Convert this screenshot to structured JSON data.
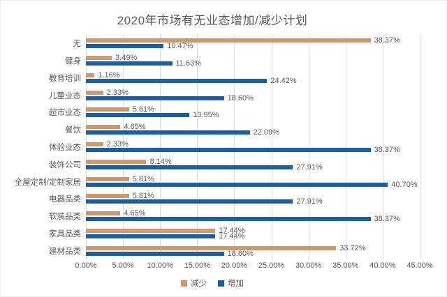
{
  "title": "2020年市场有无业态增加/减少计划",
  "colors": {
    "decrease": "#CA9A6E",
    "increase": "#1A5FA5",
    "gridline": "#DCDCDC",
    "text": "#595959"
  },
  "chart_data": {
    "type": "bar",
    "orientation": "horizontal",
    "title": "2020年市场有无业态增加/减少计划",
    "categories": [
      "无",
      "健身",
      "教育培训",
      "儿童业态",
      "超市业态",
      "餐饮",
      "体验业态",
      "装饰公司",
      "全屋定制/定制家居",
      "电器品类",
      "软装品类",
      "家具品类",
      "建材品类"
    ],
    "series": [
      {
        "name": "减少",
        "color": "#CA9A6E",
        "values": [
          38.37,
          3.49,
          1.16,
          2.33,
          5.81,
          4.65,
          2.33,
          8.14,
          5.81,
          5.81,
          4.65,
          17.44,
          33.72
        ],
        "labels": [
          "38.37%",
          "3.49%",
          "1.16%",
          "2.33%",
          "5.81%",
          "4.65%",
          "2.33%",
          "8.14%",
          "5.81%",
          "5.81%",
          "4.65%",
          "17.44%",
          "33.72%"
        ]
      },
      {
        "name": "增加",
        "color": "#1A5FA5",
        "values": [
          10.47,
          11.63,
          24.42,
          18.6,
          13.95,
          22.09,
          38.37,
          27.91,
          40.7,
          27.91,
          38.37,
          17.44,
          18.6
        ],
        "labels": [
          "10.47%",
          "11.63%",
          "24.42%",
          "18.60%",
          "13.95%",
          "22.09%",
          "38.37%",
          "27.91%",
          "40.70%",
          "27.91%",
          "38.37%",
          "17.44%",
          "18.60%"
        ]
      }
    ],
    "xlim": [
      0,
      45
    ],
    "x_ticks": [
      "0.00%",
      "5.00%",
      "10.00%",
      "15.00%",
      "20.00%",
      "25.00%",
      "30.00%",
      "35.00%",
      "40.00%",
      "45.00%"
    ],
    "grid": "vertical",
    "legend": [
      "减少",
      "增加"
    ],
    "legend_position": "bottom"
  }
}
